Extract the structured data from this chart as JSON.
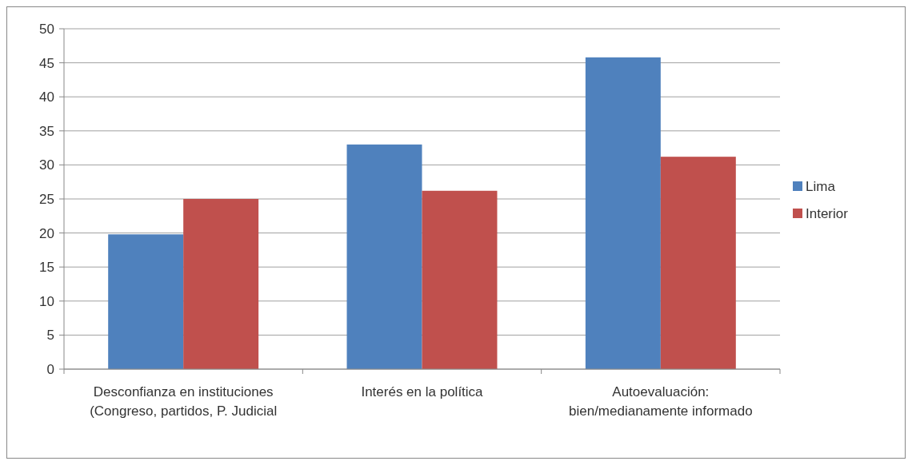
{
  "chart_data": {
    "type": "bar",
    "categories": [
      "Desconfianza en instituciones (Congreso, partidos, P. Judicial",
      "Interés en la política",
      "Autoevaluación: bien/medianamente informado"
    ],
    "series": [
      {
        "name": "Lima",
        "color": "#4f81bd",
        "values": [
          19.8,
          33,
          45.8
        ]
      },
      {
        "name": "Interior",
        "color": "#c0504d",
        "values": [
          25,
          26.2,
          31.2
        ]
      }
    ],
    "ylim": [
      0,
      50
    ],
    "yticks": [
      0,
      5,
      10,
      15,
      20,
      25,
      30,
      35,
      40,
      45,
      50
    ],
    "grid": "y",
    "legend": "right"
  }
}
